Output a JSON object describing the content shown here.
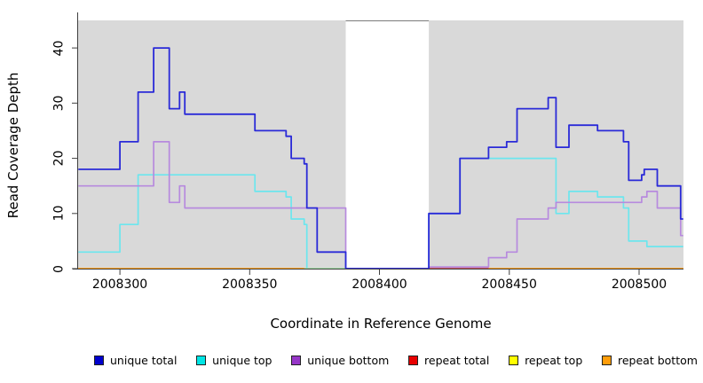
{
  "figure": {
    "y_axis_label": "Read Coverage Depth",
    "x_axis_label": "Coordinate in Reference Genome",
    "y_ticks": [
      "0",
      "10",
      "20",
      "30",
      "40"
    ],
    "x_ticks": [
      "2008300",
      "2008350",
      "2008400",
      "2008450",
      "2008500"
    ]
  },
  "legend": {
    "items": [
      {
        "label": "unique total",
        "color": "#0000cd"
      },
      {
        "label": "unique top",
        "color": "#00e5e5"
      },
      {
        "label": "unique bottom",
        "color": "#9636c8"
      },
      {
        "label": "repeat total",
        "color": "#e80000"
      },
      {
        "label": "repeat top",
        "color": "#ffff00"
      },
      {
        "label": "repeat bottom",
        "color": "#ff9d0a"
      }
    ]
  },
  "chart_data": {
    "type": "line",
    "subtype": "step",
    "title": "",
    "xlabel": "Coordinate in Reference Genome",
    "ylabel": "Read Coverage Depth",
    "xlim": [
      2008283.9,
      2008517.1
    ],
    "ylim": [
      0,
      45
    ],
    "x_tick_values": [
      2008300,
      2008350,
      2008400,
      2008450,
      2008500
    ],
    "y_tick_values": [
      0,
      10,
      20,
      30,
      40
    ],
    "grid": false,
    "legend_position": "bottom",
    "background": {
      "plot_fill": "#d9d9d9",
      "white_gap_x": [
        2008387,
        2008419
      ],
      "gap_top_line_color": "#7a7a7a"
    },
    "axis_color": "#3f3f3f",
    "series": [
      {
        "name": "unique total",
        "color": "#2a2ad8",
        "width": 1.8,
        "points": [
          [
            2008284,
            18
          ],
          [
            2008300,
            23
          ],
          [
            2008307,
            32
          ],
          [
            2008313,
            40
          ],
          [
            2008319,
            29
          ],
          [
            2008323,
            32
          ],
          [
            2008325,
            28
          ],
          [
            2008352,
            25
          ],
          [
            2008364,
            24
          ],
          [
            2008366,
            20
          ],
          [
            2008371,
            19
          ],
          [
            2008372,
            11
          ],
          [
            2008376,
            3
          ],
          [
            2008387,
            0
          ],
          [
            2008419,
            10
          ],
          [
            2008431,
            20
          ],
          [
            2008442,
            22
          ],
          [
            2008449,
            23
          ],
          [
            2008453,
            29
          ],
          [
            2008465,
            31
          ],
          [
            2008468,
            22
          ],
          [
            2008473,
            26
          ],
          [
            2008484,
            25
          ],
          [
            2008494,
            23
          ],
          [
            2008496,
            16
          ],
          [
            2008501,
            17
          ],
          [
            2008502,
            18
          ],
          [
            2008507,
            15
          ],
          [
            2008516,
            9
          ],
          [
            2008517,
            9
          ]
        ]
      },
      {
        "name": "unique top",
        "color": "#6ce6ee",
        "width": 1.7,
        "points": [
          [
            2008284,
            3
          ],
          [
            2008300,
            8
          ],
          [
            2008307,
            17
          ],
          [
            2008352,
            14
          ],
          [
            2008364,
            13
          ],
          [
            2008366,
            9
          ],
          [
            2008371,
            8
          ],
          [
            2008372,
            0
          ],
          [
            2008419,
            10
          ],
          [
            2008431,
            20
          ],
          [
            2008468,
            10
          ],
          [
            2008473,
            14
          ],
          [
            2008484,
            13
          ],
          [
            2008494,
            11
          ],
          [
            2008496,
            5
          ],
          [
            2008503,
            4
          ],
          [
            2008517,
            4
          ]
        ]
      },
      {
        "name": "unique bottom",
        "color": "#b78ade",
        "width": 1.7,
        "points": [
          [
            2008284,
            15
          ],
          [
            2008313,
            23
          ],
          [
            2008319,
            12
          ],
          [
            2008323,
            15
          ],
          [
            2008325,
            11
          ],
          [
            2008387,
            0
          ],
          [
            2008419,
            0.3
          ],
          [
            2008442,
            2
          ],
          [
            2008449,
            3
          ],
          [
            2008453,
            9
          ],
          [
            2008465,
            11
          ],
          [
            2008468,
            12
          ],
          [
            2008501,
            13
          ],
          [
            2008503,
            14
          ],
          [
            2008507,
            11
          ],
          [
            2008516,
            6
          ],
          [
            2008517,
            6
          ]
        ]
      },
      {
        "name": "repeat total",
        "color": "#e80000",
        "width": 1.4,
        "points": [
          [
            2008284,
            0
          ],
          [
            2008517,
            0
          ]
        ]
      },
      {
        "name": "repeat top",
        "color": "#ffff00",
        "width": 1.4,
        "points": [
          [
            2008284,
            0
          ],
          [
            2008517,
            0
          ]
        ]
      },
      {
        "name": "repeat bottom",
        "color": "#ffa01e",
        "width": 1.7,
        "points": [
          [
            2008284,
            0
          ],
          [
            2008517,
            0
          ]
        ]
      }
    ],
    "baseline_visible_segments": [
      {
        "x": [
          2008284,
          2008371
        ],
        "color": "#ffa01e"
      },
      {
        "x": [
          2008371,
          2008387
        ],
        "color": "#a2dba2"
      },
      {
        "x": [
          2008387,
          2008419
        ],
        "color": "#3c3cda"
      },
      {
        "x": [
          2008419,
          2008442
        ],
        "color": "#c84a6a"
      },
      {
        "x": [
          2008442,
          2008517
        ],
        "color": "#ffa01e"
      }
    ]
  }
}
